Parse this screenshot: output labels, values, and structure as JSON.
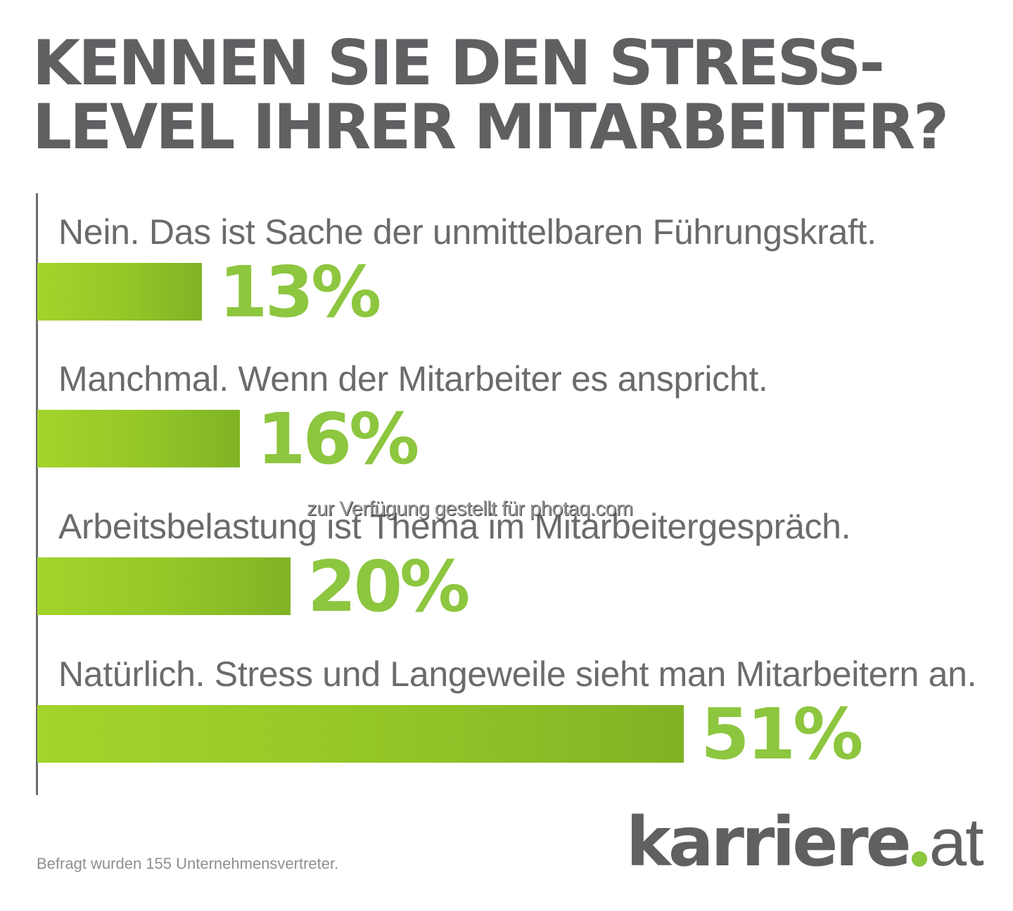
{
  "header": {
    "title_line1": "KENNEN SIE DEN STRESS-",
    "title_line2": "LEVEL IHRER MITARBEITER?"
  },
  "rows": [
    {
      "label": "Nein. Das ist Sache der unmittelbaren Führungskraft.",
      "value": 13,
      "value_label": "13%"
    },
    {
      "label": "Manchmal. Wenn der Mitarbeiter es anspricht.",
      "value": 16,
      "value_label": "16%"
    },
    {
      "label": "Arbeitsbelastung ist Thema im Mitarbeitergespräch.",
      "value": 20,
      "value_label": "20%"
    },
    {
      "label": "Natürlich. Stress und Langeweile sieht man Mitarbeitern an.",
      "value": 51,
      "value_label": "51%"
    }
  ],
  "watermark": "zur Verfügung gestellt für photaq.com",
  "footnote": "Befragt wurden 155 Unternehmensvertreter.",
  "logo": {
    "brand": "karriere",
    "tld": "at",
    "dot_color": "#8dc63f"
  },
  "colors": {
    "title": "#5f6062",
    "label": "#6a6b6d",
    "accent_green": "#8dc63f",
    "bar_gradient_start": "#a3d42b",
    "bar_gradient_end": "#80b325"
  },
  "chart_data": {
    "type": "bar",
    "orientation": "horizontal",
    "title": "KENNEN SIE DEN STRESS-LEVEL IHRER MITARBEITER?",
    "categories": [
      "Nein. Das ist Sache der unmittelbaren Führungskraft.",
      "Manchmal. Wenn der Mitarbeiter es anspricht.",
      "Arbeitsbelastung ist Thema im Mitarbeitergespräch.",
      "Natürlich. Stress und Langeweile sieht man Mitarbeitern an."
    ],
    "values": [
      13,
      16,
      20,
      51
    ],
    "data_labels": [
      "13%",
      "16%",
      "20%",
      "51%"
    ],
    "unit": "%",
    "xlabel": "",
    "ylabel": "",
    "grid": false,
    "legend": null,
    "annotations": [
      "Befragt wurden 155 Unternehmensvertreter."
    ],
    "source_logo": "karriere.at"
  }
}
